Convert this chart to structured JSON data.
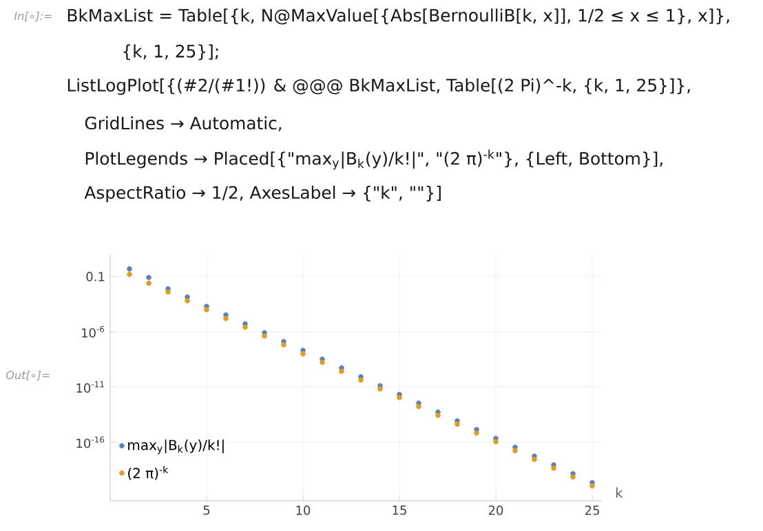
{
  "chart_data": {
    "type": "scatter",
    "xlabel": "k",
    "annotations": [
      "In[∘]:=",
      "BkMaxList = Table[{k, N@MaxValue[{Abs[BernoulliB[k, x]], 1/2 ≤ x ≤ 1}, x]},",
      "{k, 1, 25}];",
      "ListLogPlot[{(#2/(#1!)) & @@@ BkMaxList, Table[(2 Pi)^-k, {k, 1, 25}]},",
      "GridLines → Automatic,",
      "PlotLegends → Placed[{\"max$_{y}$|B$_{k}$(y)/k!|\", \"(2 π)$^{-k}$\"}, {Left, Bottom}],",
      "AspectRatio → 1/2, AxesLabel → {\"k\", \"\"}]",
      "Out[∘]="
    ],
    "x": [
      1,
      2,
      3,
      4,
      5,
      6,
      7,
      8,
      9,
      10,
      11,
      12,
      13,
      14,
      15,
      16,
      17,
      18,
      19,
      20,
      21,
      22,
      23,
      24,
      25
    ],
    "series": [
      {
        "name": "max$_{y}$|B$_{k}$(y)/k!|",
        "color": "#5e81b5",
        "values": [
          0.5,
          0.083,
          0.0078,
          0.0014,
          0.0002,
          3.3e-05,
          5.2e-06,
          8.2e-07,
          1.3e-07,
          2.1e-08,
          3.3e-09,
          5.3e-10,
          8.4e-11,
          1.3e-11,
          2.1e-12,
          3.4e-13,
          5.4e-14,
          8.6e-15,
          1.4e-15,
          2.2e-16,
          3.5e-17,
          5.5e-18,
          8.8e-19,
          1.4e-19,
          2.2e-20
        ]
      },
      {
        "name": "(2 π)$^{-k}$",
        "color": "#e19c24",
        "values": [
          0.16,
          0.025,
          0.004,
          0.00064,
          0.0001,
          1.6e-05,
          2.6e-06,
          4.1e-07,
          6.6e-08,
          1e-08,
          1.7e-09,
          2.6e-10,
          4.2e-11,
          6.7e-12,
          1.1e-12,
          1.7e-13,
          2.7e-14,
          4.3e-15,
          6.8e-16,
          1.1e-16,
          1.7e-17,
          2.8e-18,
          4.4e-19,
          7e-20,
          1.1e-20
        ]
      }
    ],
    "xlim": [
      0,
      25.5
    ],
    "xticks": [
      5,
      10,
      15,
      20,
      25
    ],
    "ylim": [
      5e-22,
      10
    ],
    "yticks": [
      0.1,
      {
        "value": 1e-06,
        "label": "10$^{-6}$"
      },
      {
        "value": 1e-11,
        "label": "10$^{-11}$"
      },
      {
        "value": 1e-16,
        "label": "10$^{-16}$"
      }
    ],
    "log": "y",
    "grid": true,
    "legend": "bottom left",
    "marker": "circle"
  }
}
